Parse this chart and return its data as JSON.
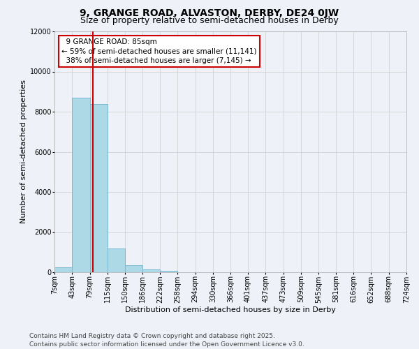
{
  "title": "9, GRANGE ROAD, ALVASTON, DERBY, DE24 0JW",
  "subtitle": "Size of property relative to semi-detached houses in Derby",
  "xlabel": "Distribution of semi-detached houses by size in Derby",
  "ylabel": "Number of semi-detached properties",
  "footer_line1": "Contains HM Land Registry data © Crown copyright and database right 2025.",
  "footer_line2": "Contains public sector information licensed under the Open Government Licence v3.0.",
  "annotation_title": "9 GRANGE ROAD: 85sqm",
  "annotation_line2": "← 59% of semi-detached houses are smaller (11,141)",
  "annotation_line3": "38% of semi-detached houses are larger (7,145) →",
  "property_sqm": 85,
  "bar_edges": [
    7,
    43,
    79,
    115,
    150,
    186,
    222,
    258,
    294,
    330,
    366,
    401,
    437,
    473,
    509,
    545,
    581,
    616,
    652,
    688,
    724
  ],
  "bar_heights": [
    250,
    8700,
    8400,
    1200,
    350,
    130,
    80,
    0,
    0,
    0,
    0,
    0,
    0,
    0,
    0,
    0,
    0,
    0,
    0,
    0
  ],
  "bar_color": "#add8e6",
  "bar_edge_color": "#7ab8d4",
  "red_line_x": 85,
  "ylim": [
    0,
    12000
  ],
  "yticks": [
    0,
    2000,
    4000,
    6000,
    8000,
    10000,
    12000
  ],
  "grid_color": "#cccccc",
  "background_color": "#eef2f8",
  "annotation_box_color": "#ffffff",
  "annotation_box_edge": "#cc0000",
  "red_line_color": "#cc0000",
  "title_fontsize": 10,
  "subtitle_fontsize": 9,
  "axis_label_fontsize": 8,
  "tick_fontsize": 7,
  "annotation_fontsize": 7.5,
  "footer_fontsize": 6.5
}
